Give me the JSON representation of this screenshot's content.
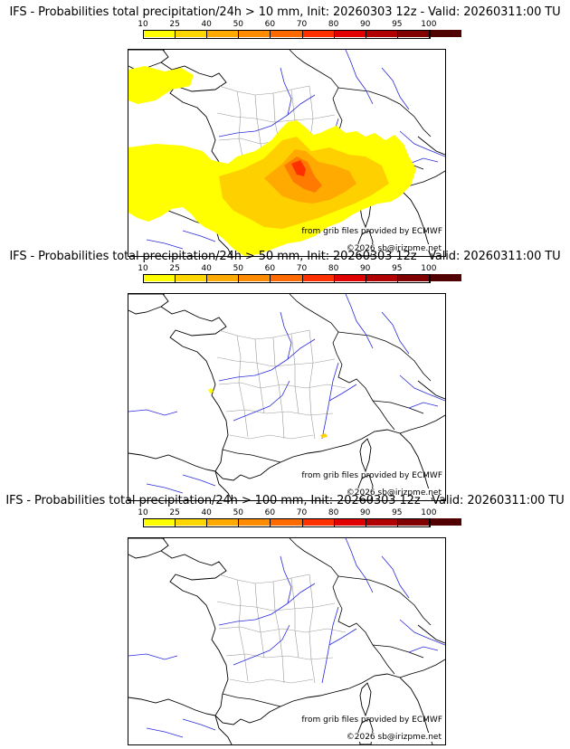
{
  "scale_labels": [
    "10",
    "25",
    "40",
    "50",
    "60",
    "70",
    "80",
    "90",
    "95",
    "100"
  ],
  "scale_colors": [
    "#ffff00",
    "#ffd700",
    "#ffaa00",
    "#ff8c00",
    "#ff6a00",
    "#ff3000",
    "#e00000",
    "#b00000",
    "#800000",
    "#500000"
  ],
  "panels": [
    {
      "title": "IFS - Probabilities total precipitation/24h > 10 mm, Init: 20260303 12z - Valid: 20260311:00 TU",
      "credit": "from grib files provided by ECMWF",
      "copyright": "©2026 sb@irizpme.net"
    },
    {
      "title": "IFS - Probabilities total precipitation/24h > 50 mm, Init: 20260303 12z - Valid: 20260311:00 TU",
      "credit": "from grib files provided by ECMWF",
      "copyright": "©2026 sb@irizpme.net"
    },
    {
      "title": "IFS - Probabilities total precipitation/24h > 100 mm, Init: 20260303 12z - Valid: 20260311:00 TU",
      "credit": "from grib files provided by ECMWF",
      "copyright": "©2026 sb@irizpme.net"
    }
  ],
  "map_colors": {
    "coast": "#000000",
    "borders_regional": "#9a9a9a",
    "rivers": "#2b2bdd",
    "prob_low": "#ffff00",
    "prob_mid": "#ffd000",
    "prob_high": "#ff7a00",
    "prob_max": "#ff3000"
  }
}
